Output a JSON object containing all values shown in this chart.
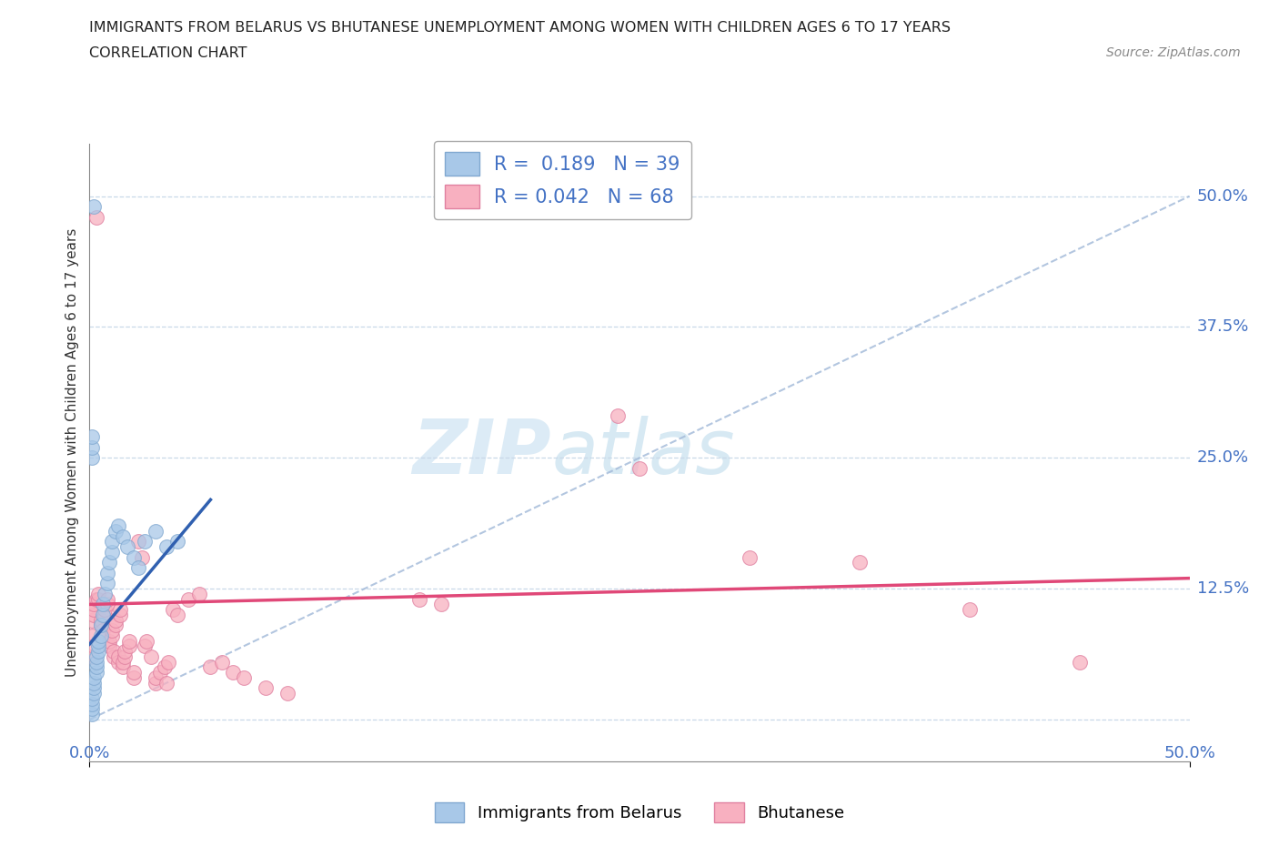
{
  "title_line1": "IMMIGRANTS FROM BELARUS VS BHUTANESE UNEMPLOYMENT AMONG WOMEN WITH CHILDREN AGES 6 TO 17 YEARS",
  "title_line2": "CORRELATION CHART",
  "source_text": "Source: ZipAtlas.com",
  "ylabel": "Unemployment Among Women with Children Ages 6 to 17 years",
  "xlim": [
    0.0,
    0.5
  ],
  "ylim": [
    -0.04,
    0.55
  ],
  "ytick_positions": [
    0.0,
    0.125,
    0.25,
    0.375,
    0.5
  ],
  "ytick_labels": [
    "",
    "12.5%",
    "25.0%",
    "37.5%",
    "50.0%"
  ],
  "belarus_color": "#a8c8e8",
  "bhutan_color": "#f8b0c0",
  "belarus_line_color": "#3060b0",
  "bhutan_line_color": "#e04878",
  "diag_line_color": "#a0b8d8",
  "R_belarus": 0.189,
  "N_belarus": 39,
  "R_bhutan": 0.042,
  "N_bhutan": 68,
  "background_color": "#ffffff",
  "grid_color": "#c8d8e8",
  "watermark_zip": "ZIP",
  "watermark_atlas": "atlas",
  "belarus_scatter": [
    [
      0.001,
      0.005
    ],
    [
      0.001,
      0.01
    ],
    [
      0.001,
      0.015
    ],
    [
      0.001,
      0.02
    ],
    [
      0.002,
      0.025
    ],
    [
      0.002,
      0.03
    ],
    [
      0.002,
      0.035
    ],
    [
      0.002,
      0.04
    ],
    [
      0.003,
      0.045
    ],
    [
      0.003,
      0.05
    ],
    [
      0.003,
      0.055
    ],
    [
      0.003,
      0.06
    ],
    [
      0.004,
      0.065
    ],
    [
      0.004,
      0.07
    ],
    [
      0.004,
      0.075
    ],
    [
      0.005,
      0.08
    ],
    [
      0.005,
      0.09
    ],
    [
      0.006,
      0.1
    ],
    [
      0.006,
      0.11
    ],
    [
      0.007,
      0.12
    ],
    [
      0.008,
      0.13
    ],
    [
      0.008,
      0.14
    ],
    [
      0.009,
      0.15
    ],
    [
      0.01,
      0.16
    ],
    [
      0.01,
      0.17
    ],
    [
      0.012,
      0.18
    ],
    [
      0.013,
      0.185
    ],
    [
      0.015,
      0.175
    ],
    [
      0.017,
      0.165
    ],
    [
      0.02,
      0.155
    ],
    [
      0.022,
      0.145
    ],
    [
      0.025,
      0.17
    ],
    [
      0.03,
      0.18
    ],
    [
      0.035,
      0.165
    ],
    [
      0.04,
      0.17
    ],
    [
      0.001,
      0.25
    ],
    [
      0.001,
      0.26
    ],
    [
      0.001,
      0.27
    ],
    [
      0.002,
      0.49
    ]
  ],
  "bhutan_scatter": [
    [
      0.001,
      0.06
    ],
    [
      0.001,
      0.08
    ],
    [
      0.001,
      0.095
    ],
    [
      0.002,
      0.07
    ],
    [
      0.002,
      0.1
    ],
    [
      0.002,
      0.105
    ],
    [
      0.002,
      0.11
    ],
    [
      0.003,
      0.115
    ],
    [
      0.003,
      0.48
    ],
    [
      0.004,
      0.115
    ],
    [
      0.004,
      0.12
    ],
    [
      0.005,
      0.09
    ],
    [
      0.005,
      0.095
    ],
    [
      0.006,
      0.08
    ],
    [
      0.006,
      0.085
    ],
    [
      0.007,
      0.1
    ],
    [
      0.007,
      0.105
    ],
    [
      0.008,
      0.11
    ],
    [
      0.008,
      0.115
    ],
    [
      0.009,
      0.07
    ],
    [
      0.009,
      0.075
    ],
    [
      0.01,
      0.08
    ],
    [
      0.01,
      0.085
    ],
    [
      0.011,
      0.06
    ],
    [
      0.011,
      0.065
    ],
    [
      0.012,
      0.09
    ],
    [
      0.012,
      0.095
    ],
    [
      0.013,
      0.055
    ],
    [
      0.013,
      0.06
    ],
    [
      0.014,
      0.1
    ],
    [
      0.014,
      0.105
    ],
    [
      0.015,
      0.05
    ],
    [
      0.015,
      0.055
    ],
    [
      0.016,
      0.06
    ],
    [
      0.016,
      0.065
    ],
    [
      0.018,
      0.07
    ],
    [
      0.018,
      0.075
    ],
    [
      0.02,
      0.04
    ],
    [
      0.02,
      0.045
    ],
    [
      0.022,
      0.17
    ],
    [
      0.024,
      0.155
    ],
    [
      0.025,
      0.07
    ],
    [
      0.026,
      0.075
    ],
    [
      0.028,
      0.06
    ],
    [
      0.03,
      0.035
    ],
    [
      0.03,
      0.04
    ],
    [
      0.032,
      0.045
    ],
    [
      0.034,
      0.05
    ],
    [
      0.035,
      0.035
    ],
    [
      0.036,
      0.055
    ],
    [
      0.038,
      0.105
    ],
    [
      0.04,
      0.1
    ],
    [
      0.045,
      0.115
    ],
    [
      0.05,
      0.12
    ],
    [
      0.055,
      0.05
    ],
    [
      0.06,
      0.055
    ],
    [
      0.065,
      0.045
    ],
    [
      0.07,
      0.04
    ],
    [
      0.08,
      0.03
    ],
    [
      0.09,
      0.025
    ],
    [
      0.15,
      0.115
    ],
    [
      0.16,
      0.11
    ],
    [
      0.24,
      0.29
    ],
    [
      0.25,
      0.24
    ],
    [
      0.3,
      0.155
    ],
    [
      0.35,
      0.15
    ],
    [
      0.4,
      0.105
    ],
    [
      0.45,
      0.055
    ]
  ]
}
